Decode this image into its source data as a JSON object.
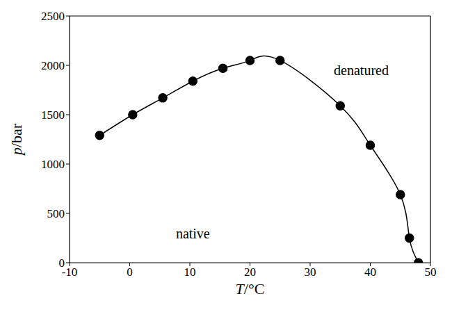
{
  "chart_data": {
    "type": "line",
    "x_label": "T/°C",
    "y_label": "p/bar",
    "annotations": [
      "denatured",
      "native"
    ],
    "x": [
      -5,
      0.5,
      5.5,
      10.5,
      15.5,
      20,
      25,
      35,
      40,
      45,
      46.5,
      48
    ],
    "values": [
      1290,
      1500,
      1670,
      1840,
      1970,
      2050,
      2050,
      1590,
      1190,
      690,
      250,
      0
    ],
    "color": "#000000",
    "marker": "circle",
    "line_style": "solid",
    "xlim": [
      -10,
      50
    ],
    "xticks": [
      -10,
      0,
      10,
      20,
      30,
      40,
      50
    ],
    "ylim": [
      0,
      2500
    ],
    "yticks": [
      0,
      500,
      1000,
      1500,
      2000,
      2500
    ],
    "grid": false
  }
}
